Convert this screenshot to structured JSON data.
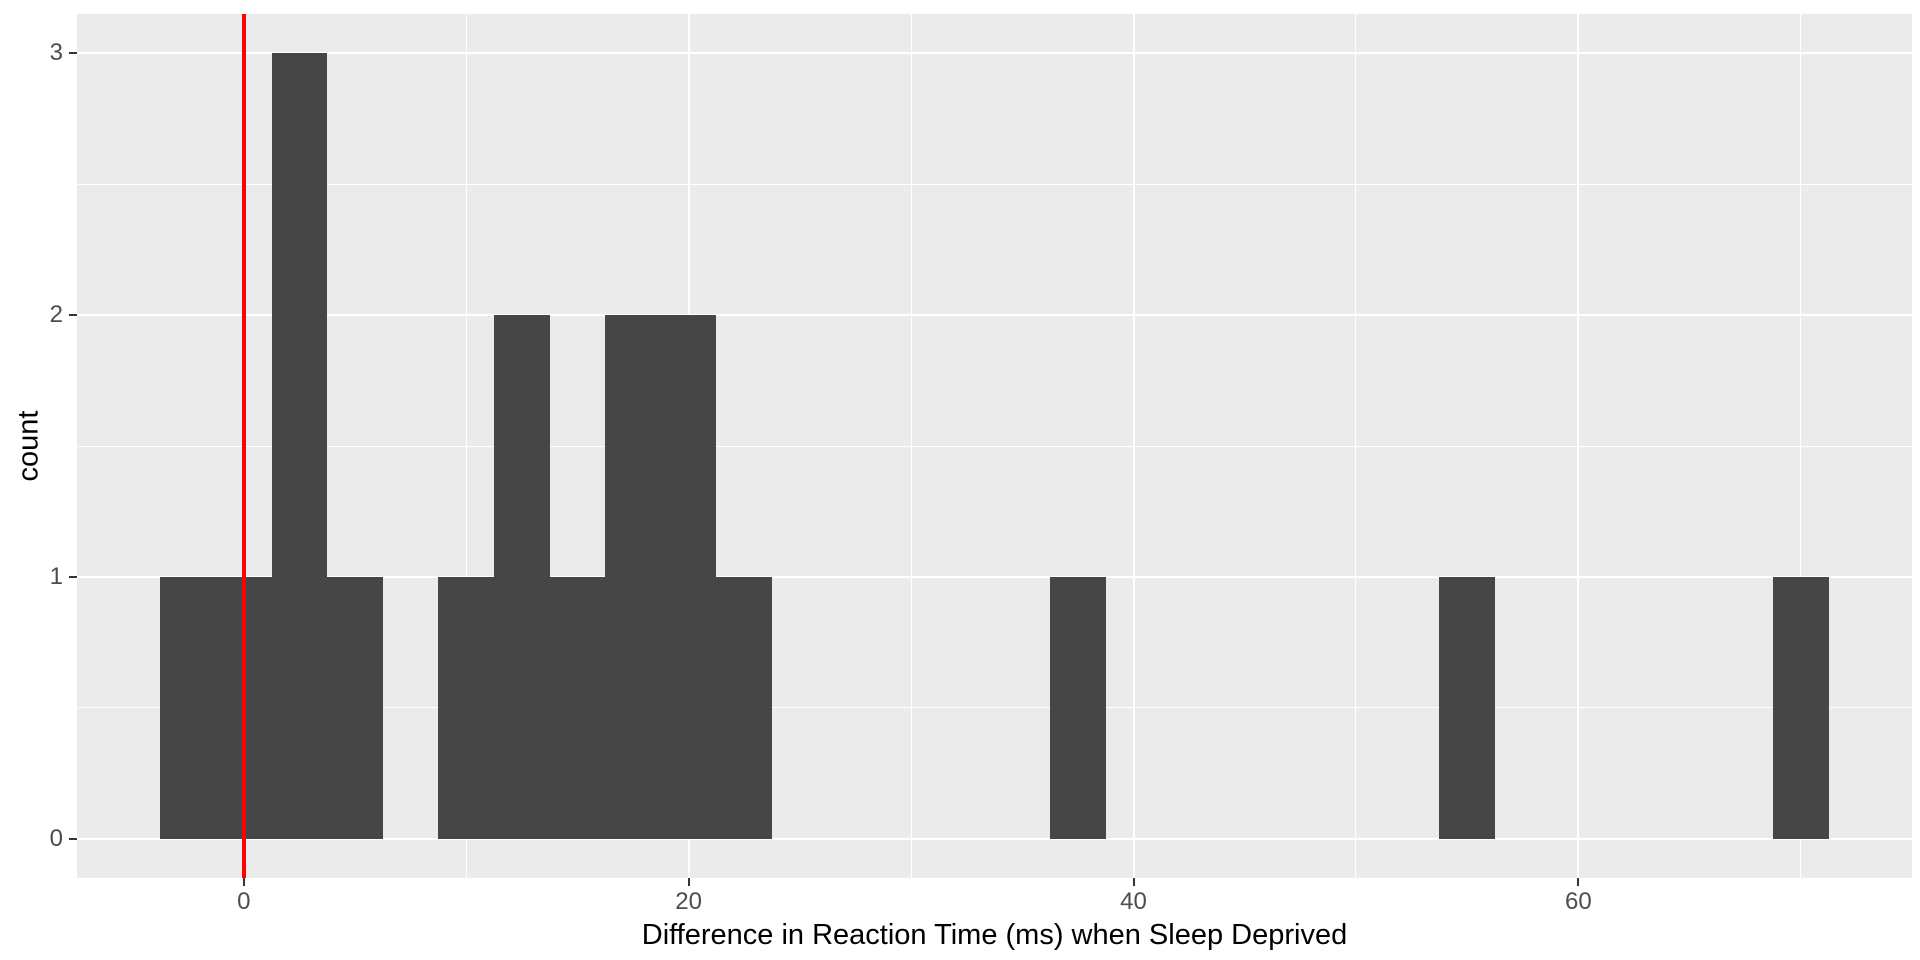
{
  "chart_data": {
    "type": "bar",
    "subtype": "histogram",
    "title": "",
    "xlabel": "Difference in Reaction Time (ms) when Sleep Deprived",
    "ylabel": "count",
    "binwidth": 2.5,
    "bins": [
      {
        "x0": -3.75,
        "x1": -1.25,
        "count": 1
      },
      {
        "x0": -1.25,
        "x1": 1.25,
        "count": 1
      },
      {
        "x0": 1.25,
        "x1": 3.75,
        "count": 3
      },
      {
        "x0": 3.75,
        "x1": 6.25,
        "count": 1
      },
      {
        "x0": 8.75,
        "x1": 11.25,
        "count": 1
      },
      {
        "x0": 11.25,
        "x1": 13.75,
        "count": 2
      },
      {
        "x0": 13.75,
        "x1": 16.25,
        "count": 1
      },
      {
        "x0": 16.25,
        "x1": 18.75,
        "count": 2
      },
      {
        "x0": 18.75,
        "x1": 21.25,
        "count": 2
      },
      {
        "x0": 21.25,
        "x1": 23.75,
        "count": 1
      },
      {
        "x0": 36.25,
        "x1": 38.75,
        "count": 1
      },
      {
        "x0": 53.75,
        "x1": 56.25,
        "count": 1
      },
      {
        "x0": 68.75,
        "x1": 71.25,
        "count": 1
      }
    ],
    "reference_line_x": 0,
    "xlim": [
      -7.5,
      75
    ],
    "ylim": [
      -0.15,
      3.15
    ],
    "x_major_ticks": [
      0,
      20,
      40,
      60
    ],
    "x_minor_ticks": [
      10,
      30,
      50,
      70
    ],
    "y_major_ticks": [
      0,
      1,
      2,
      3
    ],
    "y_minor_ticks": [
      0.5,
      1.5,
      2.5
    ],
    "grid": "on",
    "legend": "none",
    "colors": {
      "bar_fill": "#464646",
      "panel_bg": "#EBEBEB",
      "gridline": "#FFFFFF",
      "reference_line": "#FF0000",
      "tick_label": "#4D4D4D",
      "axis_title": "#000000",
      "tick_mark": "#333333"
    }
  }
}
